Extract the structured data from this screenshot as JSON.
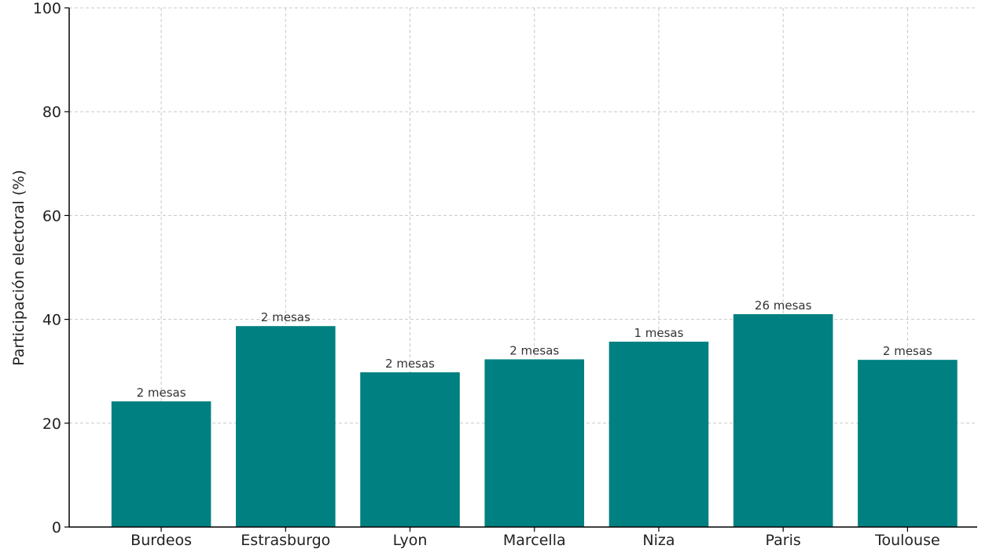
{
  "chart_data": {
    "type": "bar",
    "title": "",
    "xlabel": "",
    "ylabel": "Participación electoral (%)",
    "ylim": [
      0,
      100
    ],
    "yticks": [
      0,
      20,
      40,
      60,
      80,
      100
    ],
    "grid": true,
    "categories": [
      "Burdeos",
      "Estrasburgo",
      "Lyon",
      "Marcella",
      "Niza",
      "Paris",
      "Toulouse"
    ],
    "values": [
      24.2,
      38.7,
      29.8,
      32.3,
      35.7,
      41.0,
      32.2
    ],
    "bar_labels": [
      "2 mesas",
      "2 mesas",
      "2 mesas",
      "2 mesas",
      "1 mesas",
      "26 mesas",
      "2 mesas"
    ],
    "colors": {
      "bar": "#008080",
      "grid": "#c8c8c8",
      "axis": "#000000",
      "text": "#222222",
      "label": "#333333"
    }
  }
}
